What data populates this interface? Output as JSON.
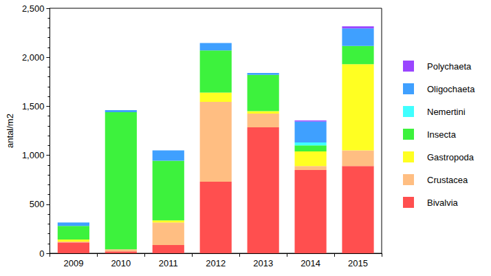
{
  "chart_data": {
    "type": "bar",
    "stacked": true,
    "grid": false,
    "legend": "right",
    "y_label": "antal/m2",
    "categories": [
      "2009",
      "2010",
      "2011",
      "2012",
      "2013",
      "2014",
      "2015"
    ],
    "ylim": [
      0,
      2500
    ],
    "yticks": [
      0,
      500,
      1000,
      1500,
      2000,
      2500
    ],
    "series": [
      {
        "name": "Bivalvia",
        "color": "#ff4f4f",
        "values": [
          110,
          20,
          85,
          730,
          1285,
          850,
          890
        ]
      },
      {
        "name": "Crustacea",
        "color": "#ffbe82",
        "values": [
          10,
          20,
          230,
          815,
          140,
          40,
          160
        ]
      },
      {
        "name": "Gastropoda",
        "color": "#ffff22",
        "values": [
          20,
          0,
          20,
          95,
          25,
          150,
          880
        ]
      },
      {
        "name": "Insecta",
        "color": "#3df23d",
        "values": [
          140,
          1400,
          610,
          430,
          370,
          60,
          185
        ]
      },
      {
        "name": "Nemertini",
        "color": "#40ffff",
        "values": [
          0,
          0,
          0,
          0,
          0,
          30,
          0
        ]
      },
      {
        "name": "Oligochaeta",
        "color": "#3fa0ff",
        "values": [
          35,
          20,
          105,
          75,
          20,
          215,
          180
        ]
      },
      {
        "name": "Polychaeta",
        "color": "#9a45ff",
        "values": [
          0,
          0,
          0,
          0,
          0,
          10,
          20
        ]
      }
    ]
  }
}
